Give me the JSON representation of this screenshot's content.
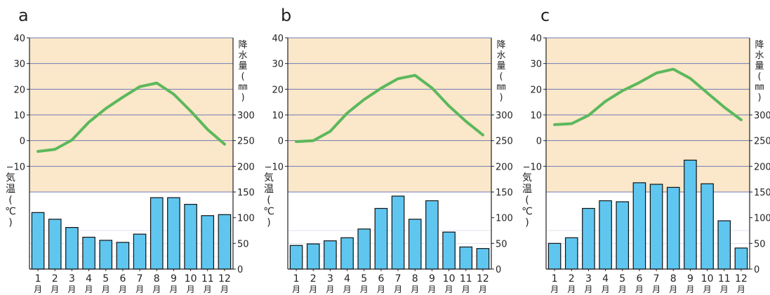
{
  "chart_data": [
    {
      "type": "line+bar",
      "title": "a",
      "categories": [
        "1",
        "2",
        "3",
        "4",
        "5",
        "6",
        "7",
        "8",
        "9",
        "10",
        "11",
        "12"
      ],
      "month_unit": "月",
      "temperature": {
        "values": [
          -4.2,
          -3.4,
          0.2,
          7.2,
          12.5,
          16.9,
          21.0,
          22.4,
          18.1,
          11.5,
          4.3,
          -1.4
        ]
      },
      "precipitation": {
        "values": [
          110,
          97,
          81,
          62,
          56,
          52,
          68,
          139,
          139,
          126,
          104,
          106
        ]
      },
      "left_axis": {
        "label": "気温(℃)",
        "ylim": [
          -50,
          40
        ],
        "ticks": [
          40,
          30,
          20,
          10,
          0,
          -10
        ]
      },
      "right_axis": {
        "label": "降水量(㎜)",
        "ylim": [
          0,
          450
        ],
        "ticks": [
          300,
          250,
          200,
          150,
          100,
          50,
          0
        ]
      },
      "grid": true
    },
    {
      "type": "line+bar",
      "title": "b",
      "categories": [
        "1",
        "2",
        "3",
        "4",
        "5",
        "6",
        "7",
        "8",
        "9",
        "10",
        "11",
        "12"
      ],
      "month_unit": "月",
      "temperature": {
        "values": [
          -0.4,
          0.0,
          3.6,
          10.7,
          16.0,
          20.4,
          24.1,
          25.4,
          20.5,
          13.5,
          7.5,
          2.2
        ]
      },
      "precipitation": {
        "values": [
          46,
          49,
          55,
          61,
          78,
          118,
          142,
          97,
          133,
          72,
          43,
          40
        ]
      },
      "left_axis": {
        "label": "気温(℃)",
        "ylim": [
          -50,
          40
        ],
        "ticks": [
          40,
          30,
          20,
          10,
          0,
          -10
        ]
      },
      "right_axis": {
        "label": "降水量(㎜)",
        "ylim": [
          0,
          450
        ],
        "ticks": [
          300,
          250,
          200,
          150,
          100,
          50,
          0
        ]
      },
      "grid": true
    },
    {
      "type": "line+bar",
      "title": "c",
      "categories": [
        "1",
        "2",
        "3",
        "4",
        "5",
        "6",
        "7",
        "8",
        "9",
        "10",
        "11",
        "12"
      ],
      "month_unit": "月",
      "temperature": {
        "values": [
          6.2,
          6.6,
          9.8,
          15.3,
          19.4,
          22.6,
          26.3,
          27.8,
          24.2,
          18.6,
          13.0,
          8.1
        ]
      },
      "precipitation": {
        "values": [
          50,
          61,
          118,
          133,
          131,
          168,
          165,
          159,
          212,
          166,
          94,
          41
        ]
      },
      "left_axis": {
        "label": "気温(℃)",
        "ylim": [
          -50,
          40
        ],
        "ticks": [
          40,
          30,
          20,
          10,
          0,
          -10
        ]
      },
      "right_axis": {
        "label": "降水量(㎜)",
        "ylim": [
          0,
          450
        ],
        "ticks": [
          300,
          250,
          200,
          150,
          100,
          50,
          0
        ]
      },
      "grid": true
    }
  ],
  "colors": {
    "plot_background": "#fbe7c9",
    "grid_line": "#6c7ab8",
    "temperature_line": "#5cb85c",
    "bar_fill": "#5fc6f0",
    "bar_stroke": "#111111",
    "axis": "#222222"
  }
}
